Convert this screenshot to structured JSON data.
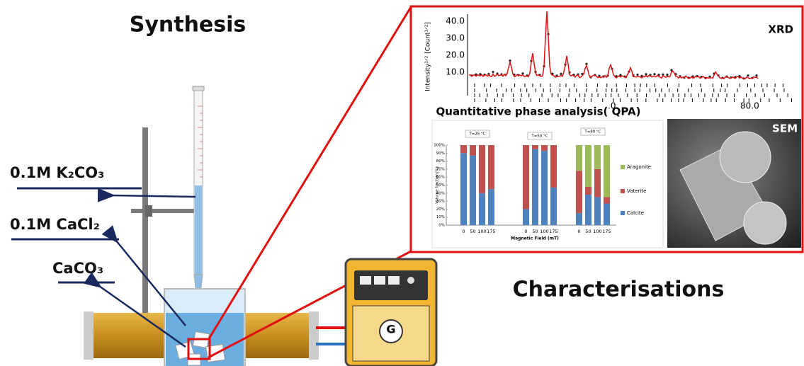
{
  "synthesis": {
    "title": "Synthesis",
    "labels": [
      "0.1M K₂CO₃",
      "0.1M CaCl₂",
      "CaCO₃"
    ]
  },
  "power_supply": {
    "label": "G"
  },
  "characterisation": {
    "title": "Characterisations",
    "xrd": {
      "label": "XRD",
      "y_label": "Intensity¹ᐟ² [Count¹ᐟ²]",
      "yticks": [
        {
          "value": 10,
          "label": "10.0"
        },
        {
          "value": 20,
          "label": "20.0"
        },
        {
          "value": 30,
          "label": "30.0"
        },
        {
          "value": 40,
          "label": "40.0"
        }
      ],
      "xtick_labels": [
        ".0",
        "80.0"
      ]
    },
    "qpa_title": "Quantitative phase analysis( QPA)",
    "sem_label": "SEM"
  },
  "chart_data": {
    "type": "bar",
    "stacked": true,
    "groups": [
      "T=25 °C",
      "T=50 °C",
      "T=80 °C"
    ],
    "categories": [
      "0",
      "50",
      "100",
      "175",
      "0",
      "50",
      "100",
      "175",
      "0",
      "50",
      "100",
      "175"
    ],
    "series": [
      {
        "name": "Calcite",
        "color": "#4f81bd",
        "values": [
          90,
          87,
          40,
          45,
          20,
          95,
          93,
          47,
          15,
          38,
          35,
          27
        ]
      },
      {
        "name": "Vaterite",
        "color": "#c0504d",
        "values": [
          10,
          13,
          60,
          55,
          80,
          5,
          7,
          53,
          53,
          10,
          35,
          8
        ]
      },
      {
        "name": "Aragonite",
        "color": "#9bbb59",
        "values": [
          0,
          0,
          0,
          0,
          0,
          0,
          0,
          0,
          32,
          52,
          30,
          65
        ]
      }
    ],
    "ylim": [
      0,
      100
    ],
    "yticks": [
      {
        "value": 0,
        "label": "0%"
      },
      {
        "value": 10,
        "label": "10%"
      },
      {
        "value": 20,
        "label": "20%"
      },
      {
        "value": 30,
        "label": "30%"
      },
      {
        "value": 40,
        "label": "40%"
      },
      {
        "value": 50,
        "label": "50%"
      },
      {
        "value": 60,
        "label": "60%"
      },
      {
        "value": 70,
        "label": "70%"
      },
      {
        "value": 80,
        "label": "80%"
      },
      {
        "value": 90,
        "label": "90%"
      },
      {
        "value": 100,
        "label": "100%"
      }
    ],
    "x_label": "Magnetic Field (mT)",
    "y_label": "Volume fraction(%)"
  }
}
